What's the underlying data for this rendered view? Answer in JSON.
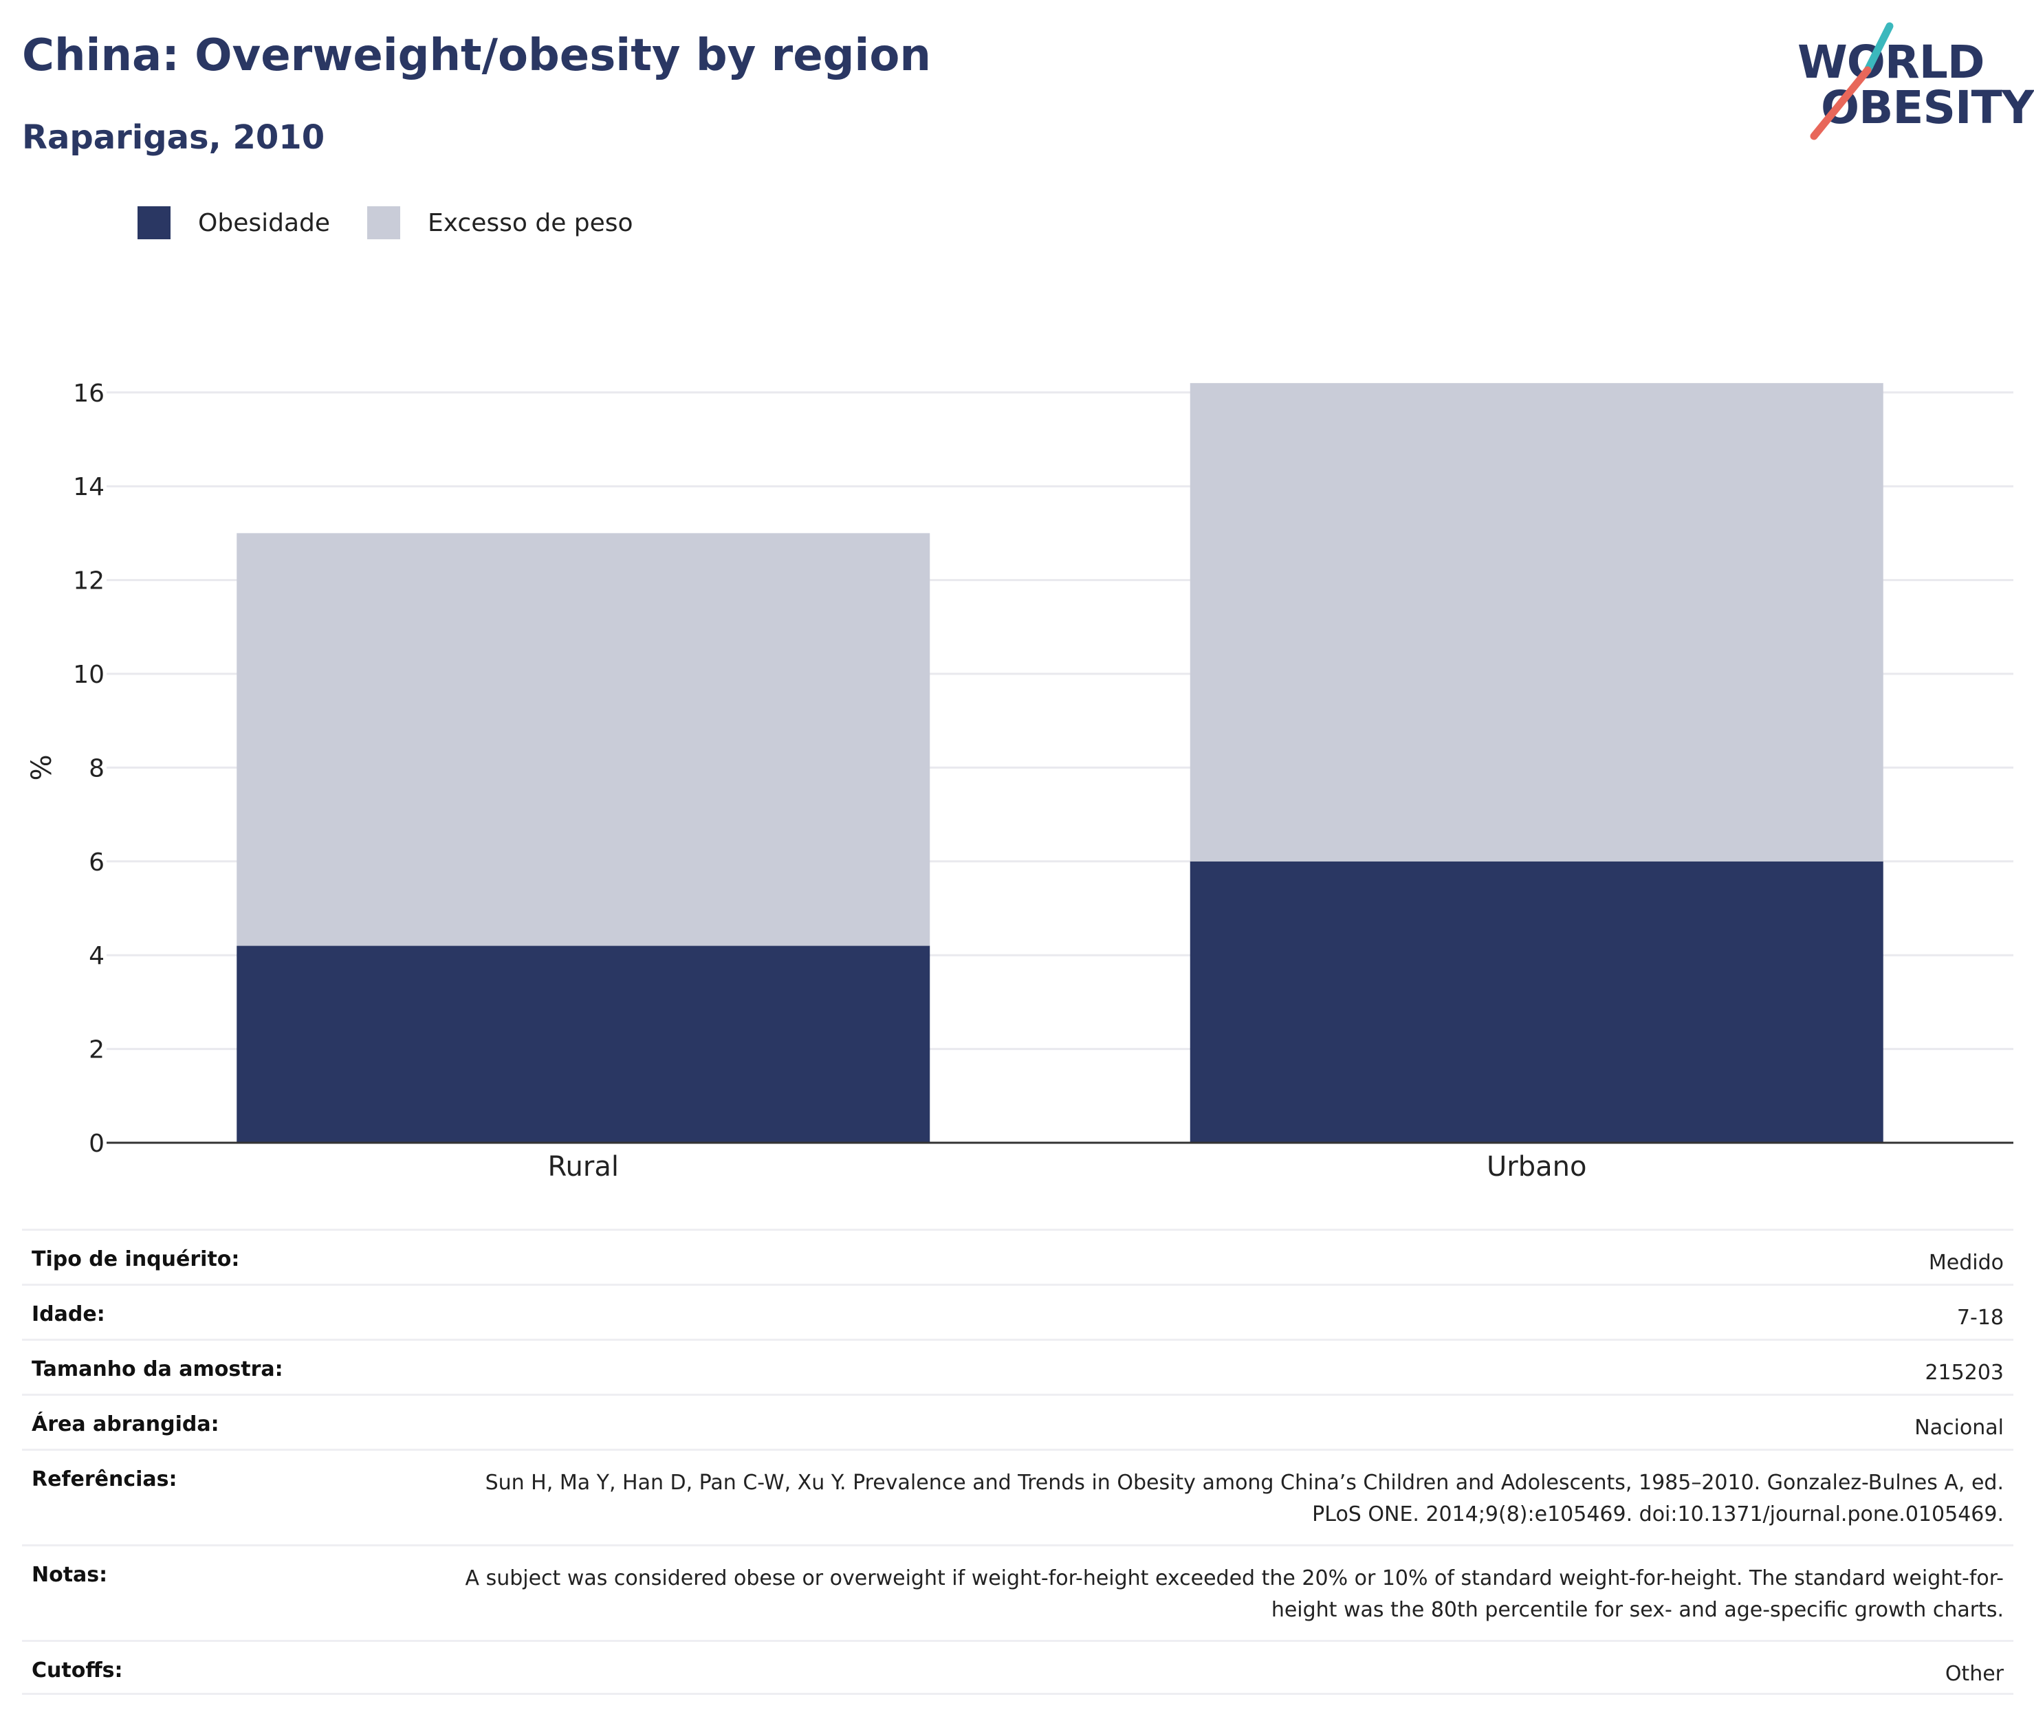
{
  "header": {
    "title": "China: Overweight/obesity by region",
    "subtitle": "Raparigas, 2010"
  },
  "logo": {
    "line1": "WORLD",
    "line2": "OBESITY",
    "teal": "#3bb8bd",
    "coral": "#e8675a",
    "navy": "#2a3763"
  },
  "legend": [
    {
      "label": "Obesidade",
      "color": "#2a3763"
    },
    {
      "label": "Excesso de peso",
      "color": "#c9ccd8"
    }
  ],
  "chart_data": {
    "type": "bar",
    "stacked": true,
    "categories": [
      "Rural",
      "Urbano"
    ],
    "series": [
      {
        "name": "Obesidade",
        "values": [
          4.2,
          6.0
        ],
        "color": "#2a3763"
      },
      {
        "name": "Excesso de peso",
        "values": [
          8.8,
          10.2
        ],
        "color": "#c9ccd8"
      }
    ],
    "ylabel": "%",
    "ylim": [
      0,
      16
    ],
    "yticks": [
      "0",
      "2",
      "4",
      "6",
      "8",
      "10",
      "12",
      "14",
      "16"
    ],
    "grid": true,
    "legend_position": "top-left"
  },
  "info": [
    {
      "key": "Tipo de inquérito:",
      "value": "Medido"
    },
    {
      "key": "Idade:",
      "value": "7-18"
    },
    {
      "key": "Tamanho da amostra:",
      "value": "215203"
    },
    {
      "key": "Área abrangida:",
      "value": "Nacional"
    },
    {
      "key": "Referências:",
      "value": "Sun H, Ma Y, Han D, Pan C-W, Xu Y. Prevalence and Trends in Obesity among China’s Children and Adolescents, 1985–2010. Gonzalez-Bulnes A, ed. PLoS ONE. 2014;9(8):e105469. doi:10.1371/journal.pone.0105469."
    },
    {
      "key": "Notas:",
      "value": "A subject was considered obese or overweight if weight-for-height exceeded the 20% or 10% of standard weight-for-height. The standard weight-for-height was the 80th percentile for sex- and age-specific growth charts."
    },
    {
      "key": "Cutoffs:",
      "value": "Other"
    }
  ]
}
